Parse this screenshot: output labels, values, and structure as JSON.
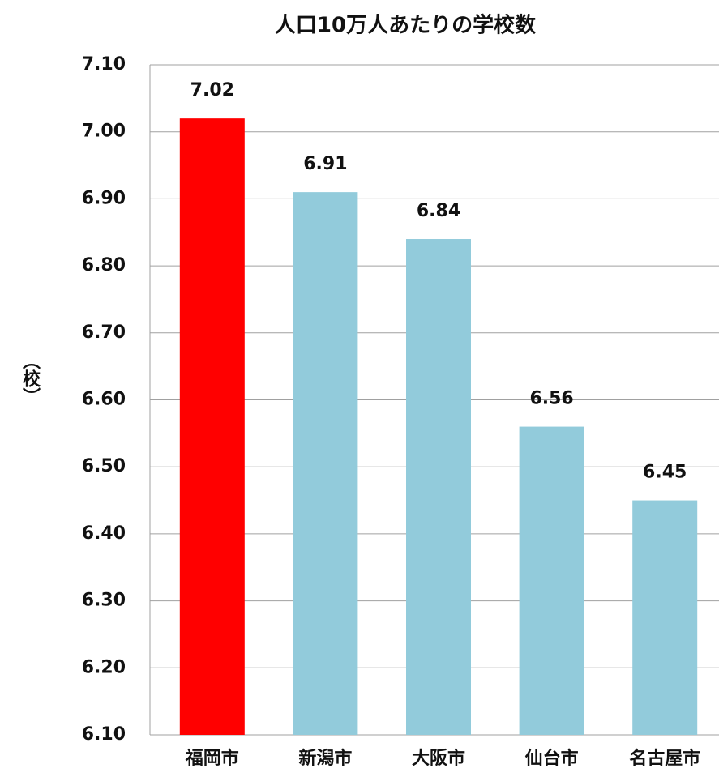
{
  "chart_data": {
    "type": "bar",
    "title": "人口10万人あたりの学校数",
    "y_label": "（校）",
    "categories": [
      "福岡市",
      "新潟市",
      "大阪市",
      "仙台市",
      "名古屋市"
    ],
    "values": [
      7.02,
      6.91,
      6.84,
      6.56,
      6.45
    ],
    "colors": [
      "#ff0000",
      "#92cbdb",
      "#92cbdb",
      "#92cbdb",
      "#92cbdb"
    ],
    "ylim": [
      6.1,
      7.1
    ],
    "yticks": [
      {
        "value": 6.1,
        "label": "6.10"
      },
      {
        "value": 6.2,
        "label": "6.20"
      },
      {
        "value": 6.3,
        "label": "6.30"
      },
      {
        "value": 6.4,
        "label": "6.40"
      },
      {
        "value": 6.5,
        "label": "6.50"
      },
      {
        "value": 6.6,
        "label": "6.60"
      },
      {
        "value": 6.7,
        "label": "6.70"
      },
      {
        "value": 6.8,
        "label": "6.80"
      },
      {
        "value": 6.9,
        "label": "6.90"
      },
      {
        "value": 7.0,
        "label": "7.00"
      },
      {
        "value": 7.1,
        "label": "7.10"
      }
    ],
    "grid": true
  }
}
